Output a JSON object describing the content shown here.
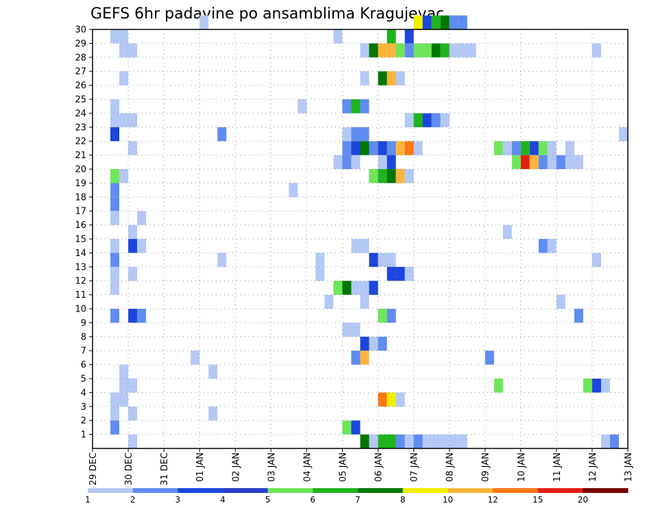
{
  "title": "GEFS 6hr padavine po ansamblima Kragujevac",
  "chart_data": {
    "type": "heatmap",
    "title": "GEFS 6hr padavine po ansamblima Kragujevac",
    "x_tick_labels": [
      "29 DEC",
      "30 DEC",
      "31 DEC",
      "01 JAN",
      "02 JAN",
      "03 JAN",
      "04 JAN",
      "05 JAN",
      "06 JAN",
      "07 JAN",
      "08 JAN",
      "09 JAN",
      "10 JAN",
      "11 JAN",
      "12 JAN",
      "13 JAN"
    ],
    "y_tick_labels": [
      "1",
      "2",
      "3",
      "4",
      "5",
      "6",
      "7",
      "8",
      "9",
      "10",
      "11",
      "12",
      "13",
      "14",
      "15",
      "16",
      "17",
      "18",
      "19",
      "20",
      "21",
      "22",
      "23",
      "24",
      "25",
      "26",
      "27",
      "28",
      "29",
      "30"
    ],
    "y_range": [
      0,
      30
    ],
    "time_step_hours": 6,
    "grid": "dotted",
    "colorbar": {
      "labels": [
        "1",
        "2",
        "3",
        "4",
        "5",
        "6",
        "7",
        "8",
        "10",
        "12",
        "15",
        "20"
      ],
      "colors": [
        "#b4c8f5",
        "#5f8cf0",
        "#1c46dc",
        "#2a3fcc",
        "#6ee65a",
        "#1eb41e",
        "#007800",
        "#f0f000",
        "#ffb43c",
        "#ff7814",
        "#e61e14",
        "#780000"
      ]
    },
    "color_levels": [
      "#b4c8f5",
      "#5f8cf0",
      "#1c46dc",
      "#6ee65a",
      "#1eb41e",
      "#007800",
      "#f0f000",
      "#ffb43c",
      "#ff7814",
      "#e61e14"
    ],
    "cells": [
      [
        30,
        12,
        0
      ],
      [
        30,
        36,
        6
      ],
      [
        30,
        37,
        2
      ],
      [
        30,
        38,
        4
      ],
      [
        30,
        39,
        5
      ],
      [
        30,
        40,
        1
      ],
      [
        30,
        41,
        1
      ],
      [
        29,
        2,
        0
      ],
      [
        29,
        3,
        0
      ],
      [
        29,
        27,
        0
      ],
      [
        29,
        33,
        4
      ],
      [
        29,
        35,
        2
      ],
      [
        28,
        3,
        0
      ],
      [
        28,
        4,
        0
      ],
      [
        28,
        30,
        0
      ],
      [
        28,
        31,
        5
      ],
      [
        28,
        32,
        7
      ],
      [
        28,
        33,
        7
      ],
      [
        28,
        34,
        3
      ],
      [
        28,
        35,
        1
      ],
      [
        28,
        36,
        3
      ],
      [
        28,
        37,
        3
      ],
      [
        28,
        38,
        5
      ],
      [
        28,
        39,
        4
      ],
      [
        28,
        40,
        0
      ],
      [
        28,
        41,
        0
      ],
      [
        28,
        42,
        0
      ],
      [
        28,
        56,
        0
      ],
      [
        26,
        3,
        0
      ],
      [
        26,
        30,
        0
      ],
      [
        26,
        32,
        5
      ],
      [
        26,
        33,
        7
      ],
      [
        26,
        34,
        0
      ],
      [
        24,
        2,
        0
      ],
      [
        24,
        23,
        0
      ],
      [
        24,
        28,
        1
      ],
      [
        24,
        29,
        4
      ],
      [
        24,
        30,
        1
      ],
      [
        23,
        2,
        0
      ],
      [
        23,
        3,
        0
      ],
      [
        23,
        4,
        0
      ],
      [
        23,
        35,
        0
      ],
      [
        23,
        36,
        4
      ],
      [
        23,
        37,
        2
      ],
      [
        23,
        38,
        1
      ],
      [
        23,
        39,
        0
      ],
      [
        22,
        2,
        2
      ],
      [
        22,
        14,
        1
      ],
      [
        22,
        28,
        0
      ],
      [
        22,
        29,
        1
      ],
      [
        22,
        30,
        1
      ],
      [
        22,
        59,
        0
      ],
      [
        21,
        4,
        0
      ],
      [
        21,
        28,
        1
      ],
      [
        21,
        29,
        2
      ],
      [
        21,
        30,
        5
      ],
      [
        21,
        31,
        1
      ],
      [
        21,
        32,
        2
      ],
      [
        21,
        33,
        1
      ],
      [
        21,
        34,
        7
      ],
      [
        21,
        35,
        8
      ],
      [
        21,
        36,
        0
      ],
      [
        21,
        45,
        3
      ],
      [
        21,
        46,
        0
      ],
      [
        21,
        47,
        1
      ],
      [
        21,
        48,
        4
      ],
      [
        21,
        49,
        2
      ],
      [
        21,
        50,
        3
      ],
      [
        21,
        51,
        0
      ],
      [
        21,
        53,
        0
      ],
      [
        20,
        27,
        0
      ],
      [
        20,
        28,
        1
      ],
      [
        20,
        29,
        0
      ],
      [
        20,
        32,
        0
      ],
      [
        20,
        33,
        2
      ],
      [
        20,
        47,
        3
      ],
      [
        20,
        48,
        9
      ],
      [
        20,
        49,
        7
      ],
      [
        20,
        50,
        1
      ],
      [
        20,
        51,
        0
      ],
      [
        20,
        52,
        1
      ],
      [
        20,
        53,
        0
      ],
      [
        20,
        54,
        0
      ],
      [
        19,
        2,
        3
      ],
      [
        19,
        3,
        0
      ],
      [
        19,
        31,
        3
      ],
      [
        19,
        32,
        4
      ],
      [
        19,
        33,
        5
      ],
      [
        19,
        34,
        7
      ],
      [
        19,
        35,
        0
      ],
      [
        18,
        2,
        1
      ],
      [
        18,
        22,
        0
      ],
      [
        17,
        2,
        1
      ],
      [
        16,
        2,
        0
      ],
      [
        16,
        5,
        0
      ],
      [
        15,
        4,
        0
      ],
      [
        15,
        46,
        0
      ],
      [
        14,
        2,
        0
      ],
      [
        14,
        4,
        2
      ],
      [
        14,
        5,
        0
      ],
      [
        14,
        29,
        0
      ],
      [
        14,
        30,
        0
      ],
      [
        14,
        50,
        1
      ],
      [
        14,
        51,
        0
      ],
      [
        13,
        2,
        1
      ],
      [
        13,
        14,
        0
      ],
      [
        13,
        25,
        0
      ],
      [
        13,
        31,
        2
      ],
      [
        13,
        32,
        0
      ],
      [
        13,
        33,
        0
      ],
      [
        13,
        56,
        0
      ],
      [
        12,
        2,
        0
      ],
      [
        12,
        4,
        0
      ],
      [
        12,
        25,
        0
      ],
      [
        12,
        33,
        2
      ],
      [
        12,
        34,
        2
      ],
      [
        12,
        35,
        0
      ],
      [
        11,
        2,
        0
      ],
      [
        11,
        27,
        3
      ],
      [
        11,
        28,
        5
      ],
      [
        11,
        29,
        0
      ],
      [
        11,
        30,
        0
      ],
      [
        11,
        31,
        2
      ],
      [
        10,
        26,
        0
      ],
      [
        10,
        30,
        0
      ],
      [
        10,
        52,
        0
      ],
      [
        9,
        2,
        1
      ],
      [
        9,
        4,
        2
      ],
      [
        9,
        5,
        1
      ],
      [
        9,
        32,
        3
      ],
      [
        9,
        33,
        1
      ],
      [
        9,
        54,
        1
      ],
      [
        8,
        28,
        0
      ],
      [
        8,
        29,
        0
      ],
      [
        7,
        30,
        2
      ],
      [
        7,
        31,
        0
      ],
      [
        7,
        32,
        1
      ],
      [
        6,
        11,
        0
      ],
      [
        6,
        29,
        1
      ],
      [
        6,
        30,
        7
      ],
      [
        6,
        44,
        1
      ],
      [
        5,
        3,
        0
      ],
      [
        5,
        13,
        0
      ],
      [
        4,
        3,
        0
      ],
      [
        4,
        4,
        0
      ],
      [
        4,
        45,
        3
      ],
      [
        4,
        55,
        3
      ],
      [
        4,
        56,
        2
      ],
      [
        4,
        57,
        0
      ],
      [
        3,
        2,
        0
      ],
      [
        3,
        3,
        0
      ],
      [
        3,
        32,
        8
      ],
      [
        3,
        33,
        6
      ],
      [
        3,
        34,
        0
      ],
      [
        2,
        2,
        0
      ],
      [
        2,
        4,
        0
      ],
      [
        2,
        13,
        0
      ],
      [
        1,
        2,
        1
      ],
      [
        1,
        28,
        3
      ],
      [
        1,
        29,
        2
      ],
      [
        0,
        4,
        0
      ],
      [
        0,
        30,
        5
      ],
      [
        0,
        31,
        0
      ],
      [
        0,
        32,
        4
      ],
      [
        0,
        33,
        4
      ],
      [
        0,
        34,
        1
      ],
      [
        0,
        35,
        0
      ],
      [
        0,
        36,
        1
      ],
      [
        0,
        37,
        0
      ],
      [
        0,
        38,
        0
      ],
      [
        0,
        39,
        0
      ],
      [
        0,
        40,
        0
      ],
      [
        0,
        41,
        0
      ],
      [
        0,
        57,
        0
      ],
      [
        0,
        58,
        1
      ]
    ]
  }
}
